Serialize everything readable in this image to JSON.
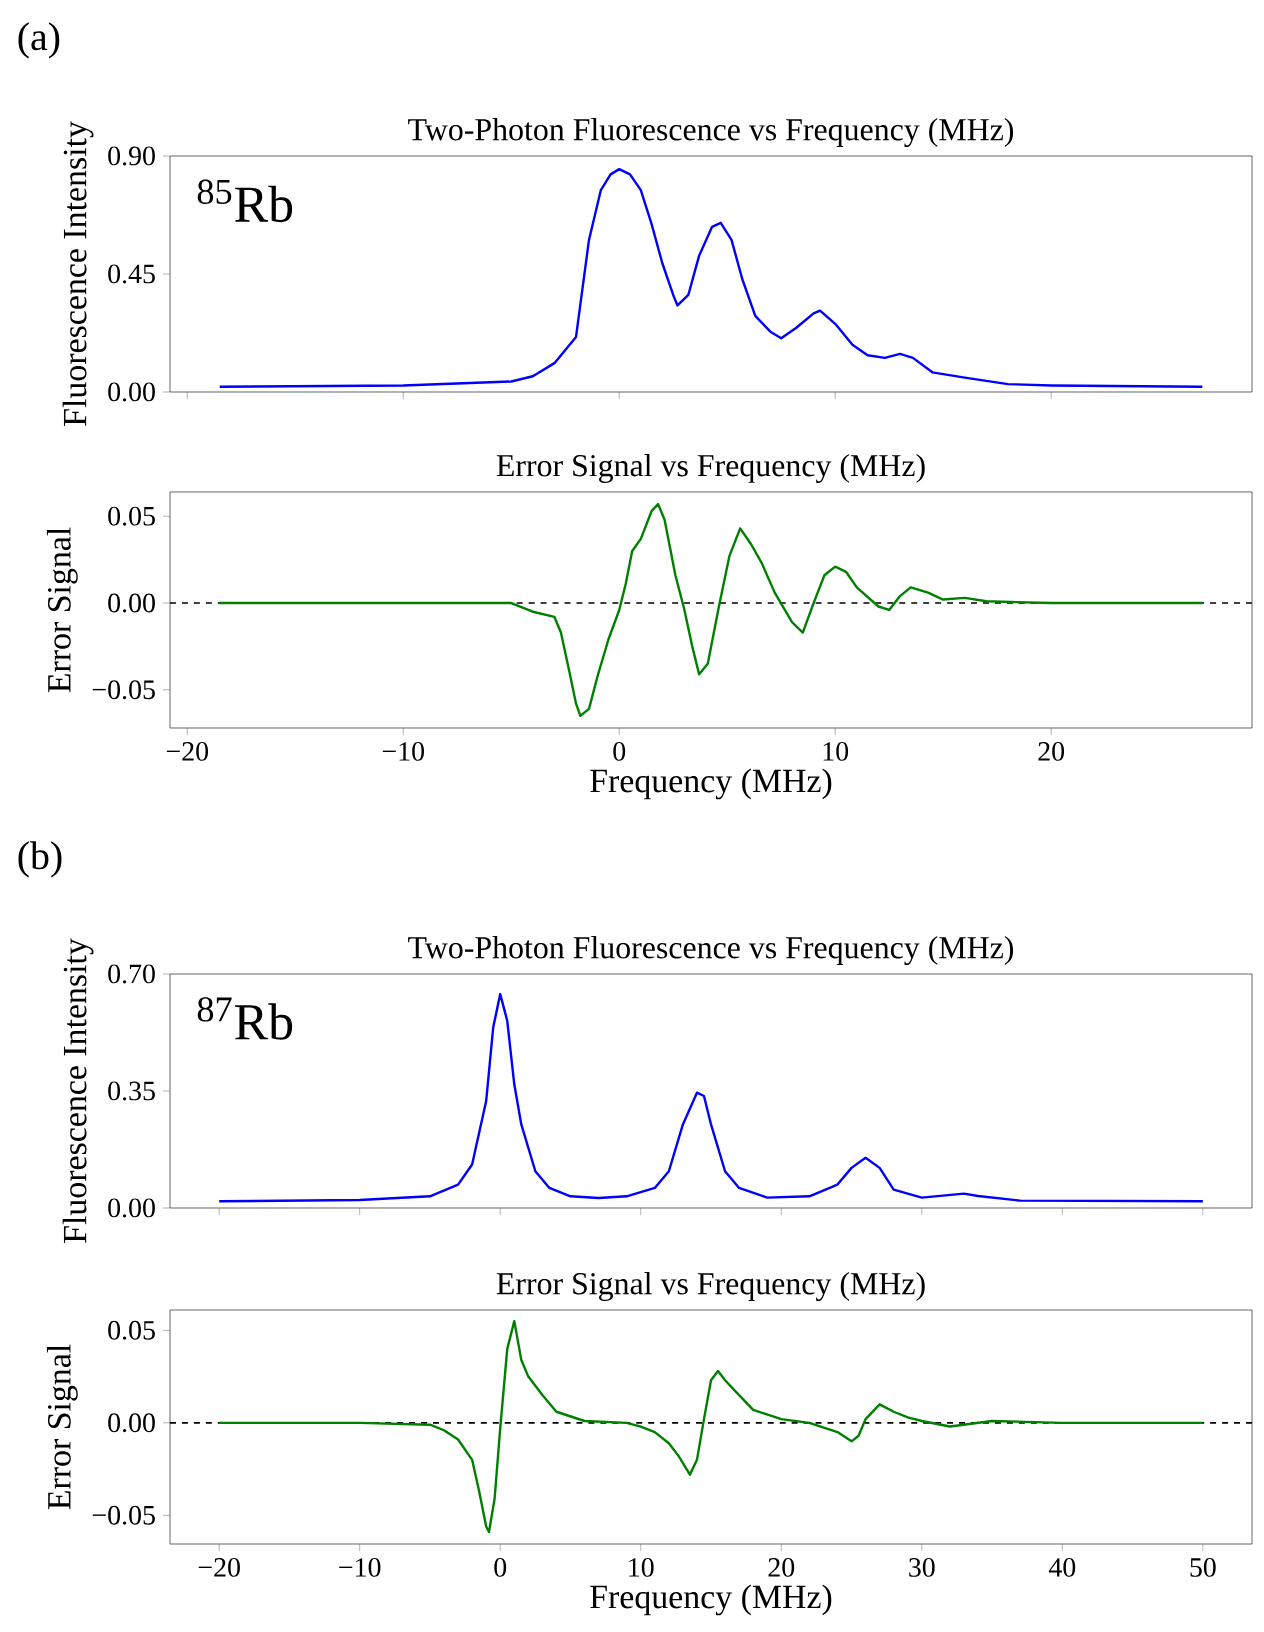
{
  "chart_data": [
    {
      "type": "line",
      "title": "Two-Photon Fluorescence vs Frequency (MHz)",
      "ylabel": "Fluorescence Intensity",
      "annotations": [
        "(a)",
        "$^{85}$Rb"
      ],
      "x": [
        -18.5,
        -10,
        -5,
        -4,
        -3,
        -2,
        -1.4,
        -0.85,
        -0.4,
        0,
        0.5,
        1,
        1.5,
        2,
        2.5,
        2.7,
        3.2,
        3.7,
        4.3,
        4.7,
        5.2,
        5.7,
        6.3,
        7,
        7.5,
        8.2,
        9,
        9.3,
        10,
        10.8,
        11.5,
        12.3,
        13,
        13.6,
        14.5,
        16,
        18,
        20,
        27
      ],
      "series": [
        {
          "color": "#0000ff",
          "values": [
            0.02,
            0.025,
            0.04,
            0.06,
            0.11,
            0.21,
            0.58,
            0.77,
            0.83,
            0.85,
            0.83,
            0.77,
            0.64,
            0.49,
            0.37,
            0.33,
            0.37,
            0.52,
            0.63,
            0.645,
            0.58,
            0.43,
            0.29,
            0.23,
            0.205,
            0.245,
            0.3,
            0.31,
            0.26,
            0.18,
            0.14,
            0.13,
            0.145,
            0.13,
            0.075,
            0.055,
            0.03,
            0.025,
            0.02
          ]
        }
      ],
      "xlim": [
        -20.8,
        29.3
      ],
      "ylim": [
        0,
        0.9
      ],
      "xticks": [
        {
          "value": -20,
          "label": null
        },
        {
          "value": -10,
          "label": null
        },
        {
          "value": 0,
          "label": null
        },
        {
          "value": 10,
          "label": null
        },
        {
          "value": 20,
          "label": null
        }
      ],
      "yticks": [
        {
          "value": 0,
          "label": "0.00"
        },
        {
          "value": 0.45,
          "label": "0.45"
        },
        {
          "value": 0.9,
          "label": "0.90"
        }
      ],
      "tick_labels": "y"
    },
    {
      "type": "line",
      "title": "Error Signal vs Frequency (MHz)",
      "xlabel": "Frequency (MHz)",
      "ylabel": "Error Signal",
      "x": [
        -18.5,
        -15,
        -10,
        -5,
        -4,
        -3,
        -2.7,
        -2.3,
        -2,
        -1.8,
        -1.4,
        -1,
        -0.5,
        0,
        0.3,
        0.6,
        1,
        1.5,
        1.8,
        2.1,
        2.6,
        3,
        3.4,
        3.7,
        4.1,
        4.6,
        5.1,
        5.6,
        6.1,
        6.6,
        7.2,
        8,
        8.5,
        9,
        9.5,
        10,
        10.5,
        11,
        12,
        12.5,
        13,
        13.5,
        14.3,
        15,
        16,
        17,
        20,
        27
      ],
      "series": [
        {
          "color": "#008000",
          "values": [
            0,
            0,
            0,
            0,
            -0.005,
            -0.008,
            -0.017,
            -0.04,
            -0.058,
            -0.065,
            -0.061,
            -0.042,
            -0.021,
            -0.004,
            0.011,
            0.03,
            0.037,
            0.053,
            0.057,
            0.048,
            0.016,
            -0.003,
            -0.026,
            -0.041,
            -0.035,
            -0.003,
            0.027,
            0.043,
            0.034,
            0.023,
            0.006,
            -0.011,
            -0.017,
            0,
            0.016,
            0.021,
            0.018,
            0.009,
            -0.002,
            -0.004,
            0.004,
            0.009,
            0.006,
            0.002,
            0.003,
            0.001,
            0,
            0
          ]
        }
      ],
      "xlim": [
        -20.8,
        29.3
      ],
      "ylim": [
        -0.072,
        0.064
      ],
      "xticks": [
        {
          "value": -20,
          "label": "−20"
        },
        {
          "value": -10,
          "label": "−10"
        },
        0,
        10,
        20
      ],
      "yticks": [
        {
          "value": -0.05,
          "label": "−0.05"
        },
        {
          "value": 0,
          "label": "0.00"
        },
        0.05
      ],
      "ref_lines": [
        {
          "axis": "y",
          "value": 0,
          "color": "#000000",
          "line_style": "dashed"
        }
      ]
    },
    {
      "type": "line",
      "title": "Two-Photon Fluorescence vs Frequency (MHz)",
      "ylabel": "Fluorescence Intensity",
      "annotations": [
        "(b)",
        "$^{87}$Rb"
      ],
      "x": [
        -20,
        -10,
        -5,
        -3,
        -2,
        -1,
        -0.5,
        0,
        0.5,
        1,
        1.5,
        2.5,
        3.5,
        5,
        7,
        9,
        11,
        12,
        13,
        14,
        14.5,
        15,
        16,
        17,
        19,
        22,
        24,
        25,
        26,
        27,
        28,
        30,
        33,
        34,
        37,
        50
      ],
      "series": [
        {
          "color": "#0000ff",
          "values": [
            0.02,
            0.024,
            0.035,
            0.07,
            0.13,
            0.32,
            0.54,
            0.64,
            0.56,
            0.37,
            0.25,
            0.11,
            0.06,
            0.035,
            0.03,
            0.035,
            0.06,
            0.11,
            0.25,
            0.345,
            0.335,
            0.25,
            0.11,
            0.06,
            0.031,
            0.035,
            0.07,
            0.12,
            0.15,
            0.12,
            0.055,
            0.031,
            0.043,
            0.036,
            0.022,
            0.02
          ]
        }
      ],
      "xlim": [
        -23.5,
        53.5
      ],
      "ylim": [
        0,
        0.7
      ],
      "xticks": [
        {
          "value": -20,
          "label": null
        },
        {
          "value": -10,
          "label": null
        },
        {
          "value": 0,
          "label": null
        },
        {
          "value": 10,
          "label": null
        },
        {
          "value": 20,
          "label": null
        },
        {
          "value": 30,
          "label": null
        },
        {
          "value": 40,
          "label": null
        },
        {
          "value": 50,
          "label": null
        }
      ],
      "yticks": [
        {
          "value": 0,
          "label": "0.00"
        },
        {
          "value": 0.35,
          "label": "0.35"
        },
        {
          "value": 0.7,
          "label": "0.70"
        }
      ],
      "tick_labels": "y"
    },
    {
      "type": "line",
      "title": "Error Signal vs Frequency (MHz)",
      "xlabel": "Frequency (MHz)",
      "ylabel": "Error Signal",
      "x": [
        -20,
        -10,
        -5,
        -4,
        -3,
        -2,
        -1.5,
        -1,
        -0.8,
        -0.4,
        0,
        0.5,
        1,
        1.5,
        2,
        3,
        4,
        6,
        9,
        10,
        11,
        12,
        12.7,
        13.5,
        14,
        14.5,
        15,
        15.5,
        16,
        17,
        18,
        20,
        22,
        24,
        25,
        25.5,
        26,
        27,
        28,
        29,
        30,
        32,
        35,
        40,
        50
      ],
      "series": [
        {
          "color": "#008000",
          "values": [
            0,
            0,
            -0.001,
            -0.004,
            -0.009,
            -0.02,
            -0.037,
            -0.056,
            -0.059,
            -0.041,
            -0.003,
            0.04,
            0.055,
            0.034,
            0.025,
            0.015,
            0.006,
            0.001,
            0,
            -0.002,
            -0.005,
            -0.011,
            -0.018,
            -0.028,
            -0.02,
            0.002,
            0.023,
            0.028,
            0.023,
            0.015,
            0.007,
            0.002,
            0,
            -0.005,
            -0.01,
            -0.007,
            0.002,
            0.01,
            0.006,
            0.003,
            0.001,
            -0.002,
            0.001,
            0,
            0
          ]
        }
      ],
      "xlim": [
        -23.5,
        53.5
      ],
      "ylim": [
        -0.0655,
        0.061
      ],
      "xticks": [
        {
          "value": -20,
          "label": "−20"
        },
        {
          "value": -10,
          "label": "−10"
        },
        0,
        10,
        20,
        30,
        40,
        50
      ],
      "yticks": [
        {
          "value": -0.05,
          "label": "−0.05"
        },
        {
          "value": 0,
          "label": "0.00"
        },
        0.05
      ],
      "ref_lines": [
        {
          "axis": "y",
          "value": 0,
          "color": "#000000",
          "line_style": "dashed"
        }
      ]
    }
  ]
}
